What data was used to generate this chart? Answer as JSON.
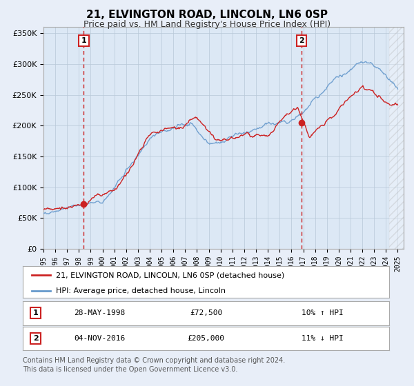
{
  "title": "21, ELVINGTON ROAD, LINCOLN, LN6 0SP",
  "subtitle": "Price paid vs. HM Land Registry's House Price Index (HPI)",
  "title_fontsize": 11,
  "subtitle_fontsize": 9,
  "ylim": [
    0,
    360000
  ],
  "yticks": [
    0,
    50000,
    100000,
    150000,
    200000,
    250000,
    300000,
    350000
  ],
  "ytick_labels": [
    "£0",
    "£50K",
    "£100K",
    "£150K",
    "£200K",
    "£250K",
    "£300K",
    "£350K"
  ],
  "bg_color": "#e8eef8",
  "plot_bg_color": "#dce8f5",
  "grid_color": "#b8c8d8",
  "hpi_color": "#6699cc",
  "price_color": "#cc2222",
  "sale1_year": 1998.41,
  "sale1_price": 72500,
  "sale2_year": 2016.84,
  "sale2_price": 205000,
  "vline_color": "#cc2222",
  "legend_line1": "21, ELVINGTON ROAD, LINCOLN, LN6 0SP (detached house)",
  "legend_line2": "HPI: Average price, detached house, Lincoln",
  "table_row1": [
    "1",
    "28-MAY-1998",
    "£72,500",
    "10% ↑ HPI"
  ],
  "table_row2": [
    "2",
    "04-NOV-2016",
    "£205,000",
    "11% ↓ HPI"
  ],
  "footnote": "Contains HM Land Registry data © Crown copyright and database right 2024.\nThis data is licensed under the Open Government Licence v3.0.",
  "footnote_fontsize": 7,
  "xmin": 1995,
  "xmax": 2025
}
